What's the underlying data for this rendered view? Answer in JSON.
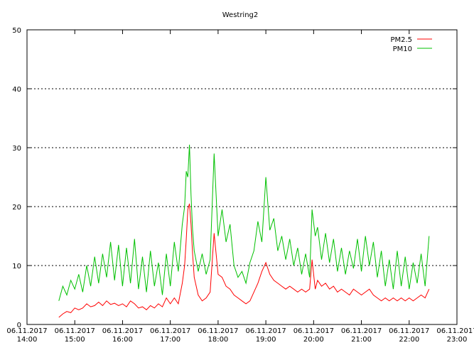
{
  "chart_data": {
    "type": "line",
    "title": "Westring2",
    "xlabel": "",
    "ylabel": "",
    "ylim": [
      0,
      50
    ],
    "yticks": [
      0,
      10,
      20,
      30,
      40,
      50
    ],
    "xlim": [
      "2017-11-06T14:00",
      "2017-11-06T23:00"
    ],
    "xticks": [
      {
        "t": "2017-11-06T14:00",
        "date": "06.11.2017",
        "time": "14:00"
      },
      {
        "t": "2017-11-06T15:00",
        "date": "06.11.2017",
        "time": "15:00"
      },
      {
        "t": "2017-11-06T16:00",
        "date": "06.11.2017",
        "time": "16:00"
      },
      {
        "t": "2017-11-06T17:00",
        "date": "06.11.2017",
        "time": "17:00"
      },
      {
        "t": "2017-11-06T18:00",
        "date": "06.11.2017",
        "time": "18:00"
      },
      {
        "t": "2017-11-06T19:00",
        "date": "06.11.2017",
        "time": "19:00"
      },
      {
        "t": "2017-11-06T20:00",
        "date": "06.11.2017",
        "time": "20:00"
      },
      {
        "t": "2017-11-06T21:00",
        "date": "06.11.2017",
        "time": "21:00"
      },
      {
        "t": "2017-11-06T22:00",
        "date": "06.11.2017",
        "time": "22:00"
      },
      {
        "t": "2017-11-06T23:00",
        "date": "06.11.2017",
        "time": "23:00"
      }
    ],
    "grid": {
      "y": true,
      "x": false,
      "style": "dotted"
    },
    "legend": "top-right",
    "series": [
      {
        "name": "PM2.5",
        "color": "#ff0000",
        "points": [
          [
            "2017-11-06T14:40",
            1.2
          ],
          [
            "2017-11-06T14:45",
            1.8
          ],
          [
            "2017-11-06T14:50",
            2.2
          ],
          [
            "2017-11-06T14:55",
            2.0
          ],
          [
            "2017-11-06T15:00",
            2.8
          ],
          [
            "2017-11-06T15:05",
            2.5
          ],
          [
            "2017-11-06T15:10",
            2.8
          ],
          [
            "2017-11-06T15:15",
            3.5
          ],
          [
            "2017-11-06T15:20",
            3.0
          ],
          [
            "2017-11-06T15:25",
            3.2
          ],
          [
            "2017-11-06T15:30",
            3.8
          ],
          [
            "2017-11-06T15:35",
            3.2
          ],
          [
            "2017-11-06T15:40",
            4.0
          ],
          [
            "2017-11-06T15:45",
            3.4
          ],
          [
            "2017-11-06T15:50",
            3.6
          ],
          [
            "2017-11-06T15:55",
            3.2
          ],
          [
            "2017-11-06T16:00",
            3.5
          ],
          [
            "2017-11-06T16:05",
            3.0
          ],
          [
            "2017-11-06T16:10",
            4.0
          ],
          [
            "2017-11-06T16:15",
            3.5
          ],
          [
            "2017-11-06T16:20",
            2.8
          ],
          [
            "2017-11-06T16:25",
            3.0
          ],
          [
            "2017-11-06T16:30",
            2.5
          ],
          [
            "2017-11-06T16:35",
            3.2
          ],
          [
            "2017-11-06T16:40",
            2.8
          ],
          [
            "2017-11-06T16:45",
            3.5
          ],
          [
            "2017-11-06T16:50",
            3.0
          ],
          [
            "2017-11-06T16:55",
            4.5
          ],
          [
            "2017-11-06T17:00",
            3.5
          ],
          [
            "2017-11-06T17:05",
            4.5
          ],
          [
            "2017-11-06T17:10",
            3.5
          ],
          [
            "2017-11-06T17:15",
            7.0
          ],
          [
            "2017-11-06T17:18",
            10.0
          ],
          [
            "2017-11-06T17:20",
            14.5
          ],
          [
            "2017-11-06T17:22",
            19.5
          ],
          [
            "2017-11-06T17:24",
            20.5
          ],
          [
            "2017-11-06T17:26",
            17.0
          ],
          [
            "2017-11-06T17:28",
            12.0
          ],
          [
            "2017-11-06T17:30",
            8.0
          ],
          [
            "2017-11-06T17:35",
            5.0
          ],
          [
            "2017-11-06T17:40",
            4.0
          ],
          [
            "2017-11-06T17:45",
            4.5
          ],
          [
            "2017-11-06T17:50",
            5.5
          ],
          [
            "2017-11-06T17:55",
            15.5
          ],
          [
            "2017-11-06T18:00",
            8.5
          ],
          [
            "2017-11-06T18:05",
            8.0
          ],
          [
            "2017-11-06T18:10",
            6.5
          ],
          [
            "2017-11-06T18:15",
            6.0
          ],
          [
            "2017-11-06T18:20",
            5.0
          ],
          [
            "2017-11-06T18:25",
            4.5
          ],
          [
            "2017-11-06T18:30",
            4.0
          ],
          [
            "2017-11-06T18:35",
            3.5
          ],
          [
            "2017-11-06T18:40",
            4.0
          ],
          [
            "2017-11-06T18:45",
            5.5
          ],
          [
            "2017-11-06T18:50",
            7.0
          ],
          [
            "2017-11-06T18:55",
            9.0
          ],
          [
            "2017-11-06T19:00",
            10.5
          ],
          [
            "2017-11-06T19:05",
            8.5
          ],
          [
            "2017-11-06T19:10",
            7.5
          ],
          [
            "2017-11-06T19:15",
            7.0
          ],
          [
            "2017-11-06T19:20",
            6.5
          ],
          [
            "2017-11-06T19:25",
            6.0
          ],
          [
            "2017-11-06T19:30",
            6.5
          ],
          [
            "2017-11-06T19:35",
            6.0
          ],
          [
            "2017-11-06T19:40",
            5.5
          ],
          [
            "2017-11-06T19:45",
            6.0
          ],
          [
            "2017-11-06T19:50",
            5.5
          ],
          [
            "2017-11-06T19:55",
            6.0
          ],
          [
            "2017-11-06T19:58",
            11.0
          ],
          [
            "2017-11-06T20:02",
            6.0
          ],
          [
            "2017-11-06T20:05",
            7.5
          ],
          [
            "2017-11-06T20:10",
            6.5
          ],
          [
            "2017-11-06T20:15",
            7.0
          ],
          [
            "2017-11-06T20:20",
            6.0
          ],
          [
            "2017-11-06T20:25",
            6.5
          ],
          [
            "2017-11-06T20:30",
            5.5
          ],
          [
            "2017-11-06T20:35",
            6.0
          ],
          [
            "2017-11-06T20:40",
            5.5
          ],
          [
            "2017-11-06T20:45",
            5.0
          ],
          [
            "2017-11-06T20:50",
            6.0
          ],
          [
            "2017-11-06T20:55",
            5.5
          ],
          [
            "2017-11-06T21:00",
            5.0
          ],
          [
            "2017-11-06T21:05",
            5.5
          ],
          [
            "2017-11-06T21:10",
            6.0
          ],
          [
            "2017-11-06T21:15",
            5.0
          ],
          [
            "2017-11-06T21:20",
            4.5
          ],
          [
            "2017-11-06T21:25",
            4.0
          ],
          [
            "2017-11-06T21:30",
            4.5
          ],
          [
            "2017-11-06T21:35",
            4.0
          ],
          [
            "2017-11-06T21:40",
            4.5
          ],
          [
            "2017-11-06T21:45",
            4.0
          ],
          [
            "2017-11-06T21:50",
            4.5
          ],
          [
            "2017-11-06T21:55",
            4.0
          ],
          [
            "2017-11-06T22:00",
            4.5
          ],
          [
            "2017-11-06T22:05",
            4.0
          ],
          [
            "2017-11-06T22:10",
            4.5
          ],
          [
            "2017-11-06T22:15",
            5.0
          ],
          [
            "2017-11-06T22:20",
            4.5
          ],
          [
            "2017-11-06T22:25",
            6.0
          ]
        ]
      },
      {
        "name": "PM10",
        "color": "#00c000",
        "points": [
          [
            "2017-11-06T14:40",
            4.0
          ],
          [
            "2017-11-06T14:45",
            6.5
          ],
          [
            "2017-11-06T14:50",
            5.0
          ],
          [
            "2017-11-06T14:55",
            7.5
          ],
          [
            "2017-11-06T15:00",
            6.0
          ],
          [
            "2017-11-06T15:05",
            8.5
          ],
          [
            "2017-11-06T15:10",
            5.5
          ],
          [
            "2017-11-06T15:15",
            10.0
          ],
          [
            "2017-11-06T15:20",
            6.5
          ],
          [
            "2017-11-06T15:25",
            11.5
          ],
          [
            "2017-11-06T15:30",
            7.0
          ],
          [
            "2017-11-06T15:35",
            12.0
          ],
          [
            "2017-11-06T15:40",
            8.0
          ],
          [
            "2017-11-06T15:45",
            14.0
          ],
          [
            "2017-11-06T15:50",
            7.5
          ],
          [
            "2017-11-06T15:55",
            13.5
          ],
          [
            "2017-11-06T16:00",
            6.5
          ],
          [
            "2017-11-06T16:05",
            13.0
          ],
          [
            "2017-11-06T16:10",
            7.0
          ],
          [
            "2017-11-06T16:15",
            14.5
          ],
          [
            "2017-11-06T16:20",
            6.0
          ],
          [
            "2017-11-06T16:25",
            11.5
          ],
          [
            "2017-11-06T16:30",
            5.5
          ],
          [
            "2017-11-06T16:35",
            12.5
          ],
          [
            "2017-11-06T16:40",
            6.5
          ],
          [
            "2017-11-06T16:45",
            10.5
          ],
          [
            "2017-11-06T16:50",
            5.0
          ],
          [
            "2017-11-06T16:55",
            12.0
          ],
          [
            "2017-11-06T17:00",
            6.5
          ],
          [
            "2017-11-06T17:05",
            14.0
          ],
          [
            "2017-11-06T17:10",
            9.0
          ],
          [
            "2017-11-06T17:15",
            17.0
          ],
          [
            "2017-11-06T17:18",
            20.0
          ],
          [
            "2017-11-06T17:20",
            26.0
          ],
          [
            "2017-11-06T17:22",
            25.0
          ],
          [
            "2017-11-06T17:24",
            30.5
          ],
          [
            "2017-11-06T17:26",
            22.0
          ],
          [
            "2017-11-06T17:28",
            16.0
          ],
          [
            "2017-11-06T17:30",
            12.5
          ],
          [
            "2017-11-06T17:35",
            9.0
          ],
          [
            "2017-11-06T17:40",
            12.0
          ],
          [
            "2017-11-06T17:45",
            8.5
          ],
          [
            "2017-11-06T17:50",
            11.0
          ],
          [
            "2017-11-06T17:55",
            29.0
          ],
          [
            "2017-11-06T18:00",
            15.0
          ],
          [
            "2017-11-06T18:05",
            19.5
          ],
          [
            "2017-11-06T18:10",
            14.0
          ],
          [
            "2017-11-06T18:15",
            17.0
          ],
          [
            "2017-11-06T18:20",
            10.0
          ],
          [
            "2017-11-06T18:25",
            8.0
          ],
          [
            "2017-11-06T18:30",
            9.0
          ],
          [
            "2017-11-06T18:35",
            7.0
          ],
          [
            "2017-11-06T18:40",
            10.5
          ],
          [
            "2017-11-06T18:45",
            12.5
          ],
          [
            "2017-11-06T18:50",
            17.5
          ],
          [
            "2017-11-06T18:55",
            14.0
          ],
          [
            "2017-11-06T19:00",
            25.0
          ],
          [
            "2017-11-06T19:05",
            16.0
          ],
          [
            "2017-11-06T19:10",
            18.0
          ],
          [
            "2017-11-06T19:15",
            12.5
          ],
          [
            "2017-11-06T19:20",
            15.0
          ],
          [
            "2017-11-06T19:25",
            11.0
          ],
          [
            "2017-11-06T19:30",
            14.5
          ],
          [
            "2017-11-06T19:35",
            10.0
          ],
          [
            "2017-11-06T19:40",
            13.0
          ],
          [
            "2017-11-06T19:45",
            8.5
          ],
          [
            "2017-11-06T19:50",
            12.0
          ],
          [
            "2017-11-06T19:55",
            8.0
          ],
          [
            "2017-11-06T19:58",
            19.5
          ],
          [
            "2017-11-06T20:02",
            15.0
          ],
          [
            "2017-11-06T20:05",
            16.5
          ],
          [
            "2017-11-06T20:10",
            11.0
          ],
          [
            "2017-11-06T20:15",
            15.5
          ],
          [
            "2017-11-06T20:20",
            10.5
          ],
          [
            "2017-11-06T20:25",
            14.5
          ],
          [
            "2017-11-06T20:30",
            9.0
          ],
          [
            "2017-11-06T20:35",
            13.0
          ],
          [
            "2017-11-06T20:40",
            8.5
          ],
          [
            "2017-11-06T20:45",
            12.5
          ],
          [
            "2017-11-06T20:50",
            9.5
          ],
          [
            "2017-11-06T20:55",
            14.5
          ],
          [
            "2017-11-06T21:00",
            9.0
          ],
          [
            "2017-11-06T21:05",
            15.0
          ],
          [
            "2017-11-06T21:10",
            10.0
          ],
          [
            "2017-11-06T21:15",
            14.0
          ],
          [
            "2017-11-06T21:20",
            8.0
          ],
          [
            "2017-11-06T21:25",
            12.5
          ],
          [
            "2017-11-06T21:30",
            6.5
          ],
          [
            "2017-11-06T21:35",
            11.0
          ],
          [
            "2017-11-06T21:40",
            6.0
          ],
          [
            "2017-11-06T21:45",
            12.5
          ],
          [
            "2017-11-06T21:50",
            6.5
          ],
          [
            "2017-11-06T21:55",
            11.5
          ],
          [
            "2017-11-06T22:00",
            6.0
          ],
          [
            "2017-11-06T22:05",
            10.5
          ],
          [
            "2017-11-06T22:10",
            7.0
          ],
          [
            "2017-11-06T22:15",
            12.0
          ],
          [
            "2017-11-06T22:20",
            6.5
          ],
          [
            "2017-11-06T22:25",
            15.0
          ]
        ]
      }
    ]
  }
}
